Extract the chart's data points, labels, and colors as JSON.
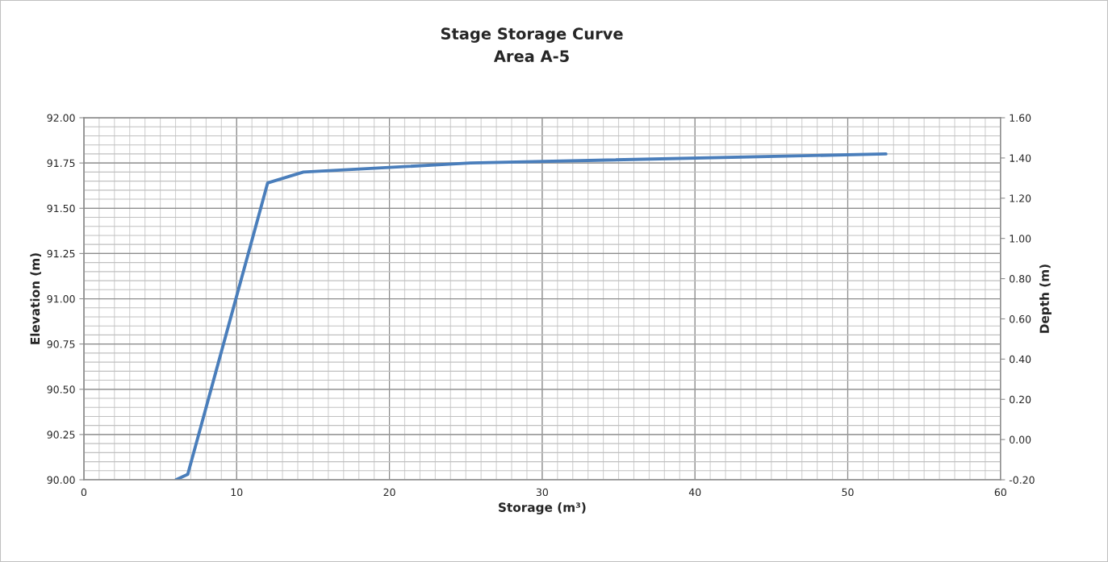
{
  "chart_data": {
    "type": "line",
    "title": "Stage Storage Curve",
    "subtitle": "Area A-5",
    "xlabel": "Storage (m³)",
    "ylabel": "Elevation (m)",
    "y2label": "Depth (m)",
    "series": [
      {
        "color": "#4a7ebb",
        "x": [
          6.03,
          6.8,
          12.03,
          14.37,
          25.3,
          52.5
        ],
        "values": [
          90.0,
          90.03,
          91.64,
          91.7,
          91.75,
          91.8
        ]
      }
    ],
    "xlim": [
      0,
      60
    ],
    "xticks": [
      0,
      10,
      20,
      30,
      40,
      50,
      60
    ],
    "ylim": [
      90,
      92
    ],
    "yticks": [
      {
        "value": 90,
        "label": "90.00"
      },
      {
        "value": 90.25,
        "label": "90.25"
      },
      {
        "value": 90.5,
        "label": "90.50"
      },
      {
        "value": 90.75,
        "label": "90.75"
      },
      {
        "value": 91,
        "label": "91.00"
      },
      {
        "value": 91.25,
        "label": "91.25"
      },
      {
        "value": 91.5,
        "label": "91.50"
      },
      {
        "value": 91.75,
        "label": "91.75"
      },
      {
        "value": 92,
        "label": "92.00"
      }
    ],
    "y2lim": [
      -0.2,
      1.6
    ],
    "y2ticks": [
      {
        "value": -0.2,
        "label": "-0.20"
      },
      {
        "value": 0,
        "label": "0.00"
      },
      {
        "value": 0.2,
        "label": "0.20"
      },
      {
        "value": 0.4,
        "label": "0.40"
      },
      {
        "value": 0.6,
        "label": "0.60"
      },
      {
        "value": 0.8,
        "label": "0.80"
      },
      {
        "value": 1.0,
        "label": "1.00"
      },
      {
        "value": 1.2,
        "label": "1.20"
      },
      {
        "value": 1.4,
        "label": "1.40"
      },
      {
        "value": 1.6,
        "label": "1.60"
      }
    ],
    "grid": true,
    "legend": false,
    "marker": "none",
    "line_style": "solid"
  }
}
